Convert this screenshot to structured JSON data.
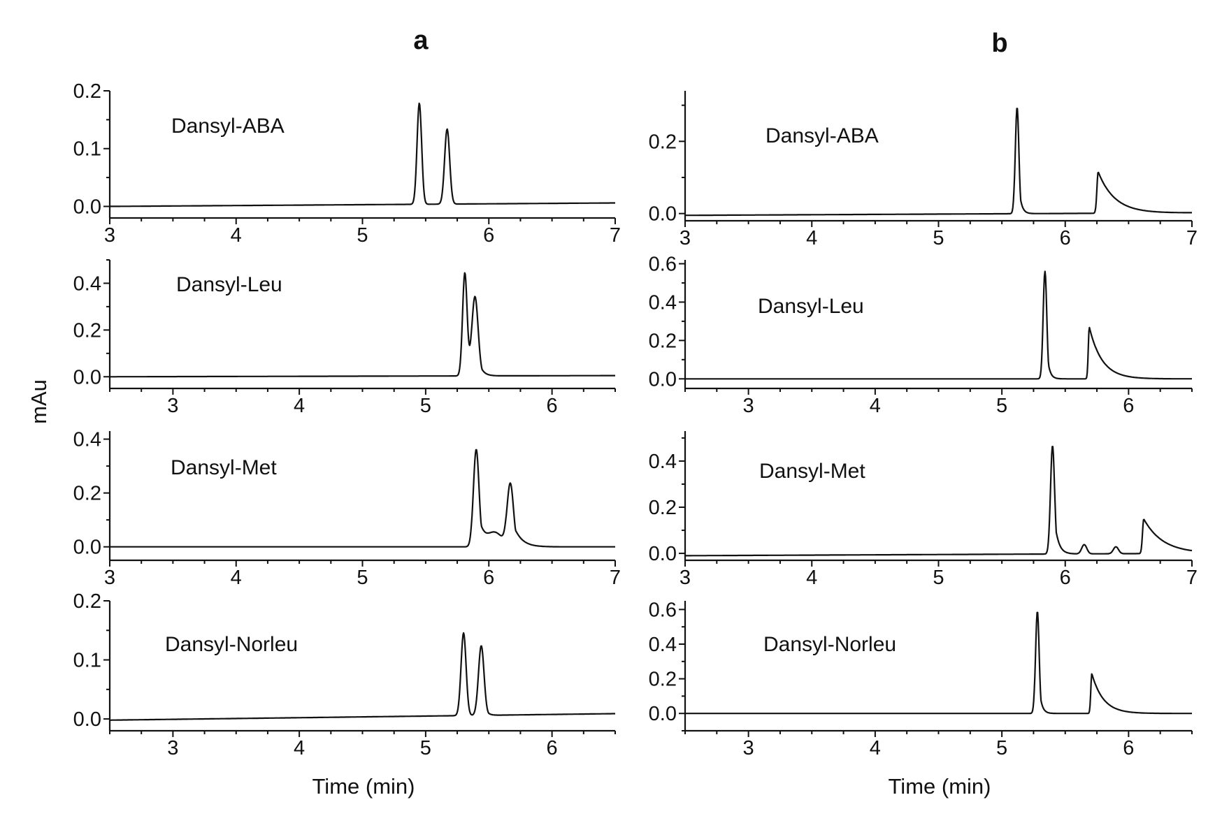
{
  "chart_data": {
    "figure": {
      "panel_titles": {
        "a": "a",
        "b": "b"
      },
      "ylabel": "mAu",
      "xlabel": "Time (min)"
    },
    "panels": [
      {
        "id": "a-aba",
        "column": "a",
        "type": "line",
        "label": "Dansyl-ABA",
        "xlim": [
          3,
          7
        ],
        "ylim": [
          -0.02,
          0.2
        ],
        "xticks": [
          3,
          4,
          5,
          6,
          7
        ],
        "xtick_labels": [
          "3",
          "4",
          "5",
          "6",
          "7"
        ],
        "yticks": [
          0.0,
          0.1,
          0.2
        ],
        "ytick_labels": [
          "0.0",
          "0.1",
          "0.2"
        ],
        "baseline": [
          [
            3.0,
            0.0
          ],
          [
            7.0,
            0.006
          ]
        ],
        "peaks": [
          {
            "t": 5.45,
            "h": 0.175,
            "w": 0.018,
            "tail": 0.0
          },
          {
            "t": 5.67,
            "h": 0.13,
            "w": 0.02,
            "tail": 0.0
          }
        ]
      },
      {
        "id": "a-leu",
        "column": "a",
        "type": "line",
        "label": "Dansyl-Leu",
        "xlim": [
          2.5,
          6.5
        ],
        "ylim": [
          -0.05,
          0.5
        ],
        "xticks": [
          3,
          4,
          5,
          6
        ],
        "xtick_labels": [
          "3",
          "4",
          "5",
          "6"
        ],
        "yticks": [
          0.0,
          0.2,
          0.4
        ],
        "ytick_labels": [
          "0.0",
          "0.2",
          "0.4"
        ],
        "baseline": [
          [
            2.5,
            0.0
          ],
          [
            6.5,
            0.005
          ]
        ],
        "peaks": [
          {
            "t": 5.31,
            "h": 0.44,
            "w": 0.018,
            "tail": 0.0
          },
          {
            "t": 5.39,
            "h": 0.34,
            "w": 0.025,
            "tail": 0.03
          }
        ]
      },
      {
        "id": "a-met",
        "column": "a",
        "type": "line",
        "label": "Dansyl-Met",
        "xlim": [
          3,
          7
        ],
        "ylim": [
          -0.05,
          0.43
        ],
        "xticks": [
          3,
          4,
          5,
          6,
          7
        ],
        "xtick_labels": [
          "3",
          "4",
          "5",
          "6",
          "7"
        ],
        "yticks": [
          0.0,
          0.2,
          0.4
        ],
        "ytick_labels": [
          "0.0",
          "0.2",
          "0.4"
        ],
        "baseline": [
          [
            3.0,
            0.0
          ],
          [
            7.0,
            0.0
          ]
        ],
        "peaks": [
          {
            "t": 5.9,
            "h": 0.36,
            "w": 0.022,
            "tail": 0.04
          },
          {
            "t": 6.05,
            "h": 0.05,
            "w": 0.06,
            "tail": 0.0
          },
          {
            "t": 6.17,
            "h": 0.23,
            "w": 0.025,
            "tail": 0.06
          }
        ]
      },
      {
        "id": "a-norleu",
        "column": "a",
        "type": "line",
        "label": "Dansyl-Norleu",
        "xlim": [
          2.5,
          6.5
        ],
        "ylim": [
          -0.02,
          0.2
        ],
        "xticks": [
          3,
          4,
          5,
          6
        ],
        "xtick_labels": [
          "3",
          "4",
          "5",
          "6"
        ],
        "yticks": [
          0.0,
          0.1,
          0.2
        ],
        "ytick_labels": [
          "0.0",
          "0.1",
          "0.2"
        ],
        "baseline": [
          [
            2.5,
            -0.002
          ],
          [
            6.5,
            0.009
          ]
        ],
        "peaks": [
          {
            "t": 5.3,
            "h": 0.14,
            "w": 0.02,
            "tail": 0.0
          },
          {
            "t": 5.44,
            "h": 0.118,
            "w": 0.022,
            "tail": 0.02
          }
        ]
      },
      {
        "id": "b-aba",
        "column": "b",
        "type": "line",
        "label": "Dansyl-ABA",
        "xlim": [
          3,
          7
        ],
        "ylim": [
          -0.02,
          0.34
        ],
        "xticks": [
          3,
          4,
          5,
          6,
          7
        ],
        "xtick_labels": [
          "3",
          "4",
          "5",
          "6",
          "7"
        ],
        "yticks": [
          0.0,
          0.2
        ],
        "ytick_labels": [
          "0.0",
          "0.2"
        ],
        "baseline": [
          [
            3.0,
            -0.005
          ],
          [
            7.0,
            0.002
          ]
        ],
        "peaks": [
          {
            "t": 5.62,
            "h": 0.295,
            "w": 0.014,
            "tail": 0.02
          },
          {
            "t": 6.26,
            "h": 0.115,
            "w": 0.01,
            "tail": 0.13,
            "sharp": true
          }
        ]
      },
      {
        "id": "b-leu",
        "column": "b",
        "type": "line",
        "label": "Dansyl-Leu",
        "xlim": [
          2.5,
          6.5
        ],
        "ylim": [
          -0.05,
          0.62
        ],
        "xticks": [
          3,
          4,
          5,
          6
        ],
        "xtick_labels": [
          "3",
          "4",
          "5",
          "6"
        ],
        "yticks": [
          0.0,
          0.2,
          0.4,
          0.6
        ],
        "ytick_labels": [
          "0.0",
          "0.2",
          "0.4",
          "0.6"
        ],
        "baseline": [
          [
            2.5,
            0.0
          ],
          [
            6.5,
            0.0
          ]
        ],
        "peaks": [
          {
            "t": 5.34,
            "h": 0.56,
            "w": 0.014,
            "tail": 0.02
          },
          {
            "t": 5.69,
            "h": 0.27,
            "w": 0.008,
            "tail": 0.1,
            "sharp": true
          }
        ]
      },
      {
        "id": "b-met",
        "column": "b",
        "type": "line",
        "label": "Dansyl-Met",
        "xlim": [
          3,
          7
        ],
        "ylim": [
          -0.03,
          0.53
        ],
        "xticks": [
          3,
          4,
          5,
          6,
          7
        ],
        "xtick_labels": [
          "3",
          "4",
          "5",
          "6",
          "7"
        ],
        "yticks": [
          0.0,
          0.2,
          0.4
        ],
        "ytick_labels": [
          "0.0",
          "0.2",
          "0.4"
        ],
        "baseline": [
          [
            3.0,
            -0.01
          ],
          [
            7.0,
            0.0
          ]
        ],
        "peaks": [
          {
            "t": 5.9,
            "h": 0.47,
            "w": 0.016,
            "tail": 0.03
          },
          {
            "t": 6.15,
            "h": 0.04,
            "w": 0.02,
            "tail": 0.0
          },
          {
            "t": 6.4,
            "h": 0.03,
            "w": 0.02,
            "tail": 0.0
          },
          {
            "t": 6.62,
            "h": 0.15,
            "w": 0.01,
            "tail": 0.15,
            "sharp": true
          }
        ]
      },
      {
        "id": "b-norleu",
        "column": "b",
        "type": "line",
        "label": "Dansyl-Norleu",
        "xlim": [
          2.5,
          6.5
        ],
        "ylim": [
          -0.1,
          0.65
        ],
        "xticks": [
          3,
          4,
          5,
          6
        ],
        "xtick_labels": [
          "3",
          "4",
          "5",
          "6"
        ],
        "yticks": [
          0.0,
          0.2,
          0.4,
          0.6
        ],
        "ytick_labels": [
          "0.0",
          "0.2",
          "0.4",
          "0.6"
        ],
        "baseline": [
          [
            2.5,
            0.0
          ],
          [
            6.5,
            0.0
          ]
        ],
        "peaks": [
          {
            "t": 5.28,
            "h": 0.59,
            "w": 0.014,
            "tail": 0.02
          },
          {
            "t": 5.71,
            "h": 0.23,
            "w": 0.008,
            "tail": 0.09,
            "sharp": true
          }
        ]
      }
    ]
  }
}
